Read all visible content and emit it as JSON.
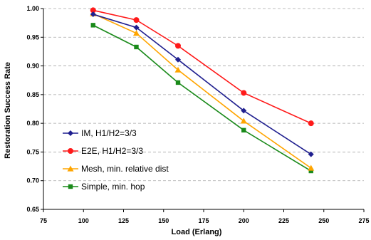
{
  "chart_data": {
    "type": "line",
    "title": "",
    "xlabel": "Load (Erlang)",
    "ylabel": "Restoration Success Rate",
    "xlim": [
      75,
      275
    ],
    "ylim": [
      0.65,
      1.0
    ],
    "xticks": [
      "75",
      "100",
      "125",
      "150",
      "175",
      "200",
      "225",
      "250",
      "275"
    ],
    "yticks": [
      "0.65",
      "0.70",
      "0.75",
      "0.80",
      "0.85",
      "0.90",
      "0.95",
      "1.00"
    ],
    "grid": "horizontal dashed",
    "legend_position": "bottom-left",
    "series": [
      {
        "name": "IM, H1/H2=3/3",
        "color": "#1f1f8f",
        "marker": "diamond",
        "x": [
          106,
          133,
          159,
          200,
          242
        ],
        "y": [
          0.99,
          0.967,
          0.911,
          0.822,
          0.746
        ]
      },
      {
        "name": "E2E, H1/H2=3/3",
        "color": "#ff1a1a",
        "marker": "circle",
        "x": [
          106,
          133,
          159,
          200,
          242
        ],
        "y": [
          0.997,
          0.98,
          0.935,
          0.853,
          0.8
        ]
      },
      {
        "name": "Mesh, min. relative dist",
        "color": "#ffa500",
        "marker": "triangle",
        "x": [
          106,
          133,
          159,
          200,
          242
        ],
        "y": [
          0.991,
          0.957,
          0.893,
          0.804,
          0.722
        ]
      },
      {
        "name": "Simple, min. hop",
        "color": "#1a8a1a",
        "marker": "square",
        "x": [
          106,
          133,
          159,
          200,
          242
        ],
        "y": [
          0.971,
          0.933,
          0.871,
          0.788,
          0.717
        ]
      }
    ]
  }
}
